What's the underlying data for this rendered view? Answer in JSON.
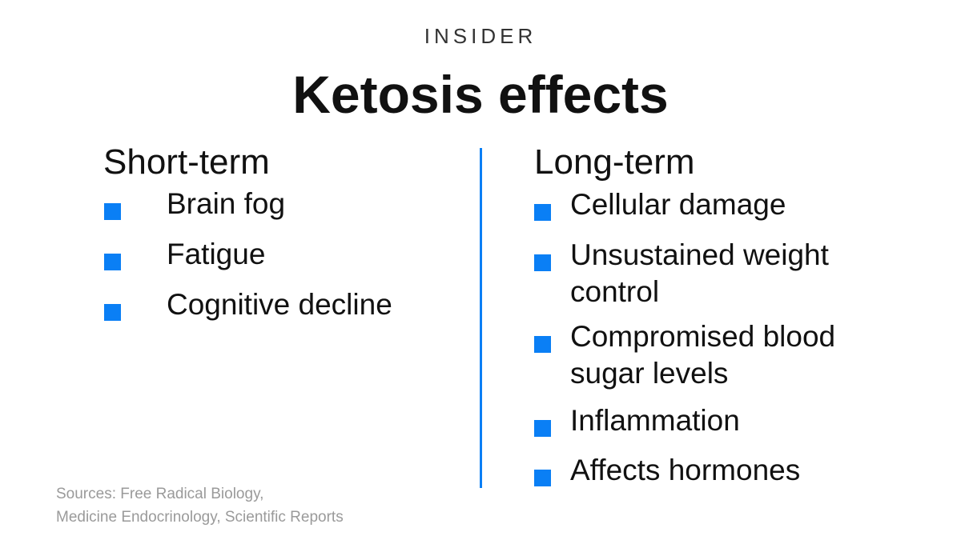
{
  "brand": "INSIDER",
  "title": "Ketosis effects",
  "accent_color": "#0a7ff5",
  "left_column": {
    "heading": "Short-term",
    "items": [
      "Brain fog",
      "Fatigue",
      "Cognitive decline"
    ]
  },
  "right_column": {
    "heading": "Long-term",
    "items": [
      "Cellular damage",
      "Unsustained weight control",
      "Compromised blood sugar levels",
      "Inflammation",
      "Affects hormones"
    ]
  },
  "sources": {
    "line1": "Sources: Free Radical Biology,",
    "line2": "Medicine Endocrinology, Scientific Reports"
  }
}
